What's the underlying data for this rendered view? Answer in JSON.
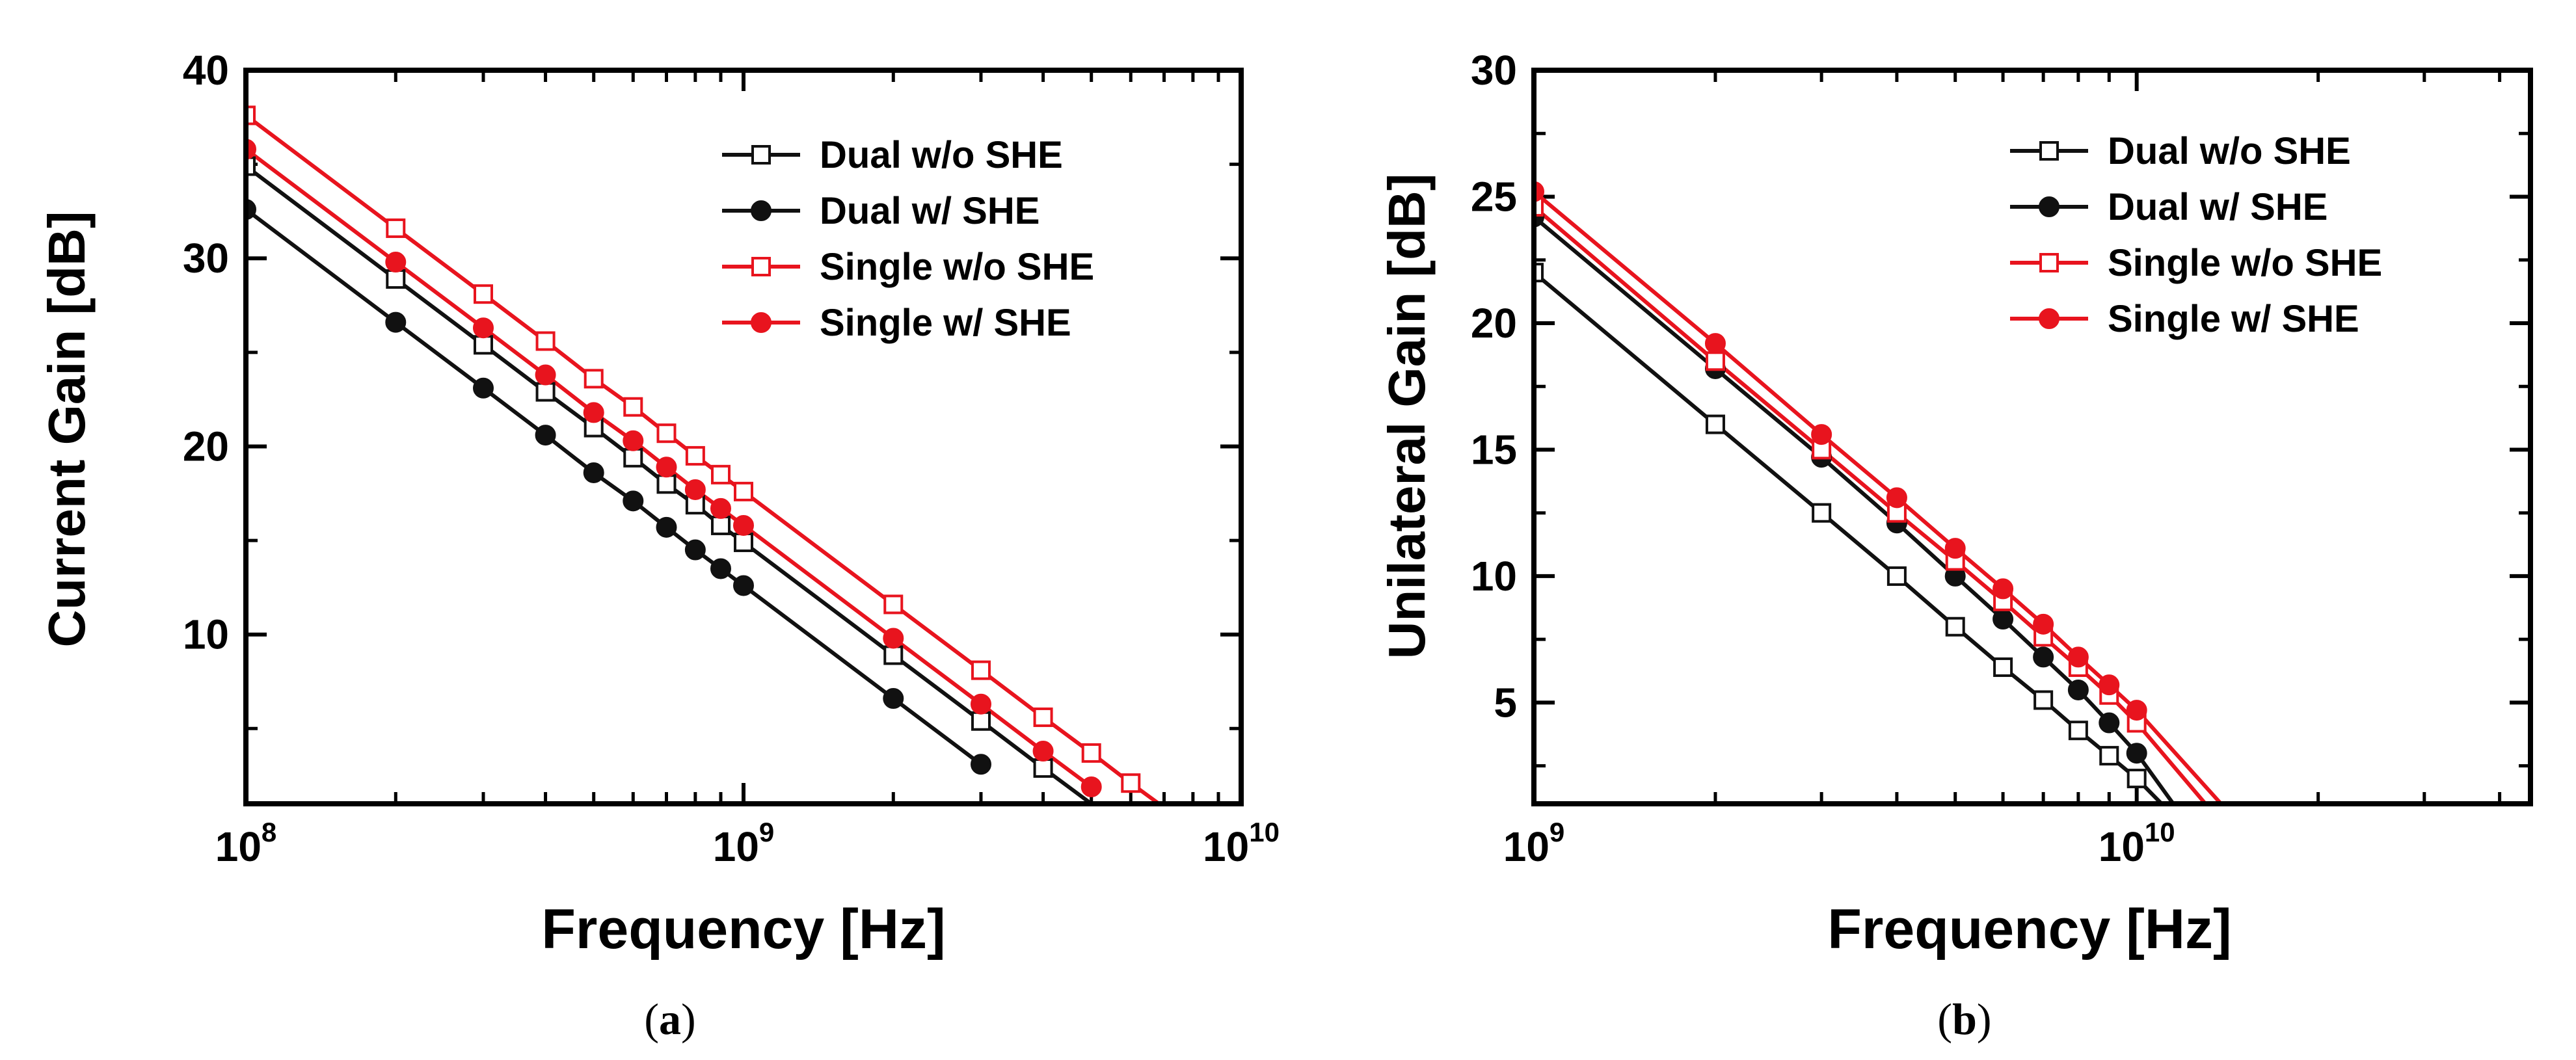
{
  "chart_data": [
    {
      "id": "a",
      "type": "line",
      "panel_label": "a",
      "xscale": "log",
      "xlim": [
        100000000,
        10000000000
      ],
      "ylim": [
        1,
        40
      ],
      "xlabel": "Frequency [Hz]",
      "ylabel": "Current Gain [dB]",
      "x_ticks": [
        {
          "value": 100000000,
          "base": "10",
          "exp": "8"
        },
        {
          "value": 1000000000,
          "base": "10",
          "exp": "9"
        },
        {
          "value": 10000000000,
          "base": "10",
          "exp": "10"
        }
      ],
      "y_ticks": [
        {
          "value": 10,
          "label": "10"
        },
        {
          "value": 20,
          "label": "20"
        },
        {
          "value": 30,
          "label": "30"
        },
        {
          "value": 40,
          "label": "40"
        }
      ],
      "legend_position": "top-right",
      "series": [
        {
          "name": "Dual w/o SHE",
          "color": "#111111",
          "marker": "open-square",
          "x": [
            100000000,
            200000000,
            300000000,
            400000000,
            500000000,
            600000000,
            700000000,
            800000000,
            900000000,
            1000000000,
            2000000000,
            3000000000,
            4000000000,
            5000000000
          ],
          "y": [
            34.9,
            28.9,
            25.4,
            22.9,
            21.0,
            19.4,
            18.0,
            16.9,
            15.8,
            14.9,
            8.9,
            5.4,
            2.9,
            1.0
          ]
        },
        {
          "name": "Dual w/ SHE",
          "color": "#111111",
          "marker": "filled-circle",
          "x": [
            100000000,
            200000000,
            300000000,
            400000000,
            500000000,
            600000000,
            700000000,
            800000000,
            900000000,
            1000000000,
            2000000000,
            3000000000
          ],
          "y": [
            32.6,
            26.6,
            23.1,
            20.6,
            18.6,
            17.1,
            15.7,
            14.5,
            13.5,
            12.6,
            6.6,
            3.1
          ]
        },
        {
          "name": "Single w/o SHE",
          "color": "#e8141e",
          "marker": "open-square",
          "x": [
            100000000,
            200000000,
            300000000,
            400000000,
            500000000,
            600000000,
            700000000,
            800000000,
            900000000,
            1000000000,
            2000000000,
            3000000000,
            4000000000,
            5000000000,
            6000000000,
            7000000000
          ],
          "y": [
            37.6,
            31.6,
            28.1,
            25.6,
            23.6,
            22.1,
            20.7,
            19.5,
            18.5,
            17.6,
            11.6,
            8.1,
            5.6,
            3.7,
            2.1,
            0.8
          ]
        },
        {
          "name": "Single w/ SHE",
          "color": "#e8141e",
          "marker": "filled-circle",
          "x": [
            100000000,
            200000000,
            300000000,
            400000000,
            500000000,
            600000000,
            700000000,
            800000000,
            900000000,
            1000000000,
            2000000000,
            3000000000,
            4000000000,
            5000000000
          ],
          "y": [
            35.8,
            29.8,
            26.3,
            23.8,
            21.8,
            20.3,
            18.9,
            17.7,
            16.7,
            15.8,
            9.8,
            6.3,
            3.8,
            1.9
          ]
        }
      ]
    },
    {
      "id": "b",
      "type": "line",
      "panel_label": "b",
      "xscale": "log",
      "xlim": [
        1000000000,
        45000000000
      ],
      "ylim": [
        1,
        30
      ],
      "xlabel": "Frequency [Hz]",
      "ylabel": "Unilateral Gain [dB]",
      "x_ticks": [
        {
          "value": 1000000000,
          "base": "10",
          "exp": "9"
        },
        {
          "value": 10000000000,
          "base": "10",
          "exp": "10"
        }
      ],
      "y_ticks": [
        {
          "value": 5,
          "label": "5"
        },
        {
          "value": 10,
          "label": "10"
        },
        {
          "value": 15,
          "label": "15"
        },
        {
          "value": 20,
          "label": "20"
        },
        {
          "value": 25,
          "label": "25"
        },
        {
          "value": 30,
          "label": "30"
        }
      ],
      "legend_position": "top-right",
      "series": [
        {
          "name": "Dual w/o SHE",
          "color": "#111111",
          "marker": "open-square",
          "x": [
            1000000000,
            2000000000,
            3000000000,
            4000000000,
            5000000000,
            6000000000,
            7000000000,
            8000000000,
            9000000000,
            10000000000,
            11000000000
          ],
          "y": [
            22.0,
            16.0,
            12.5,
            10.0,
            8.0,
            6.4,
            5.1,
            3.9,
            2.9,
            2.0,
            1.0
          ]
        },
        {
          "name": "Dual w/ SHE",
          "color": "#111111",
          "marker": "filled-circle",
          "x": [
            1000000000,
            2000000000,
            3000000000,
            4000000000,
            5000000000,
            6000000000,
            7000000000,
            8000000000,
            9000000000,
            10000000000,
            11500000000
          ],
          "y": [
            24.2,
            18.2,
            14.7,
            12.1,
            10.0,
            8.3,
            6.8,
            5.5,
            4.2,
            3.0,
            1.0
          ]
        },
        {
          "name": "Single w/o SHE",
          "color": "#e8141e",
          "marker": "open-square",
          "x": [
            1000000000,
            2000000000,
            3000000000,
            4000000000,
            5000000000,
            6000000000,
            7000000000,
            8000000000,
            9000000000,
            10000000000,
            13000000000
          ],
          "y": [
            24.6,
            18.5,
            15.0,
            12.5,
            10.6,
            9.0,
            7.6,
            6.4,
            5.3,
            4.2,
            1.0
          ]
        },
        {
          "name": "Single w/ SHE",
          "color": "#e8141e",
          "marker": "filled-circle",
          "x": [
            1000000000,
            2000000000,
            3000000000,
            4000000000,
            5000000000,
            6000000000,
            7000000000,
            8000000000,
            9000000000,
            10000000000,
            13800000000
          ],
          "y": [
            25.2,
            19.2,
            15.6,
            13.1,
            11.1,
            9.5,
            8.1,
            6.8,
            5.7,
            4.7,
            1.0
          ]
        }
      ]
    }
  ]
}
